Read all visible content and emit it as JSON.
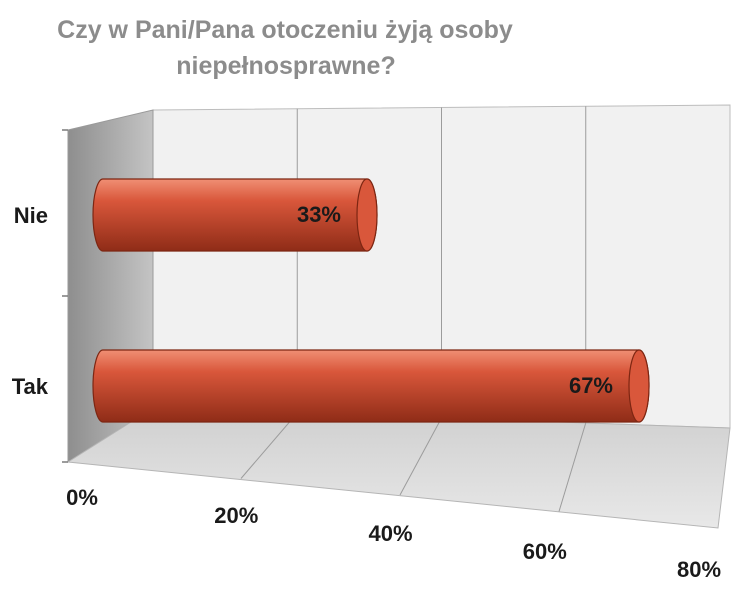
{
  "chart_data": {
    "type": "bar",
    "orientation": "horizontal",
    "style": "3d-cylinder",
    "title_lines": [
      "Czy w Pani/Pana  otoczeniu żyją osoby",
      "niepełnosprawne?"
    ],
    "categories": [
      "Nie",
      "Tak"
    ],
    "values": [
      33,
      67
    ],
    "data_labels": [
      "33%",
      "67%"
    ],
    "xlim": [
      0,
      80
    ],
    "x_ticks": [
      0,
      20,
      40,
      60,
      80
    ],
    "x_tick_labels": [
      "0%",
      "20%",
      "40%",
      "60%",
      "80%"
    ],
    "grid": true,
    "legend": "none",
    "colors": {
      "bar": "#d9573b",
      "bar_highlight": "#f08f74",
      "bar_shadow": "#8f2c17",
      "title": "#8c8c8c",
      "back_wall": "#f1f1f1",
      "side_wall": "#a8a8a8",
      "floor": "#d9d9d9"
    }
  }
}
